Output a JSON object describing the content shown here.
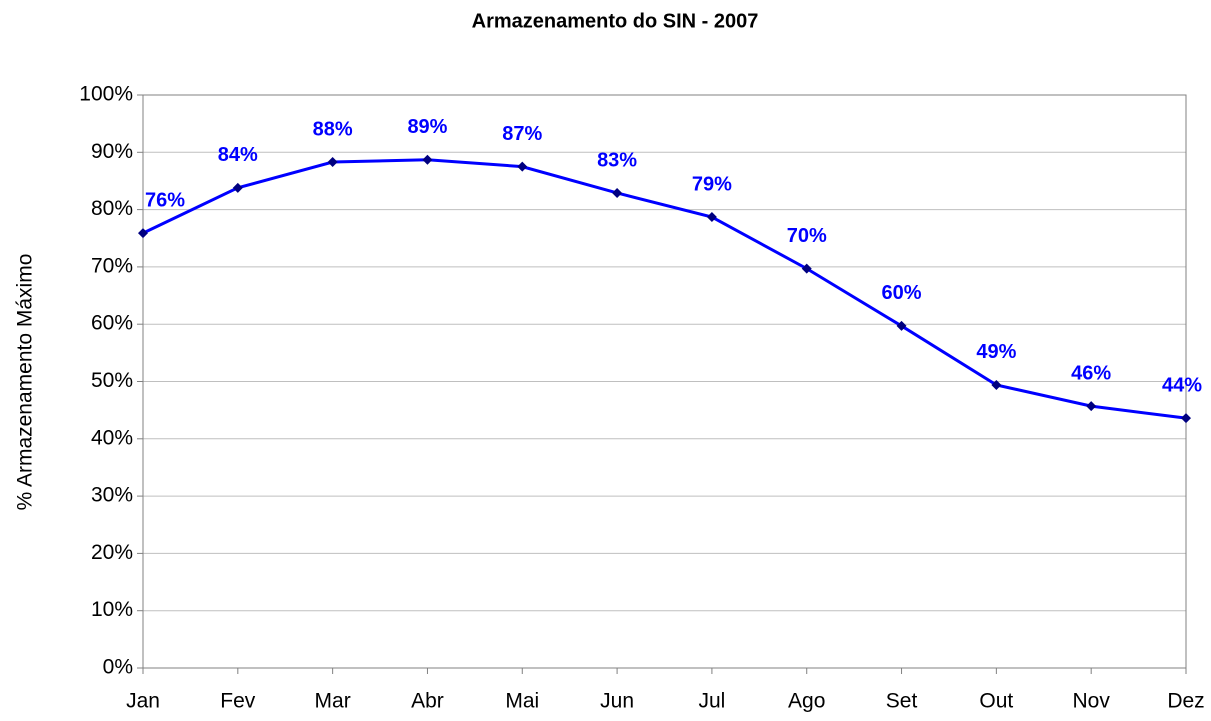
{
  "chart_data": {
    "type": "line",
    "title": "Armazenamento do SIN - 2007",
    "y_label": "% Armazenamento Máximo",
    "categories": [
      "Jan",
      "Fev",
      "Mar",
      "Abr",
      "Mai",
      "Jun",
      "Jul",
      "Ago",
      "Set",
      "Out",
      "Nov",
      "Dez"
    ],
    "series": [
      {
        "name": "Armazenamento",
        "color": "#0000ff",
        "marker_color": "#000080",
        "values": [
          75.9,
          83.8,
          88.3,
          88.7,
          87.5,
          82.9,
          78.7,
          69.7,
          59.7,
          49.4,
          45.7,
          43.6
        ],
        "value_labels": [
          "76%",
          "84%",
          "88%",
          "89%",
          "87%",
          "83%",
          "79%",
          "70%",
          "60%",
          "49%",
          "46%",
          "44%"
        ]
      }
    ],
    "ylim": [
      0,
      100
    ],
    "yticks": [
      {
        "value": 0,
        "label": "0%"
      },
      {
        "value": 10,
        "label": "10%"
      },
      {
        "value": 20,
        "label": "20%"
      },
      {
        "value": 30,
        "label": "30%"
      },
      {
        "value": 40,
        "label": "40%"
      },
      {
        "value": 50,
        "label": "50%"
      },
      {
        "value": 60,
        "label": "60%"
      },
      {
        "value": 70,
        "label": "70%"
      },
      {
        "value": 80,
        "label": "80%"
      },
      {
        "value": 90,
        "label": "90%"
      },
      {
        "value": 100,
        "label": "100%"
      }
    ],
    "grid": true
  }
}
